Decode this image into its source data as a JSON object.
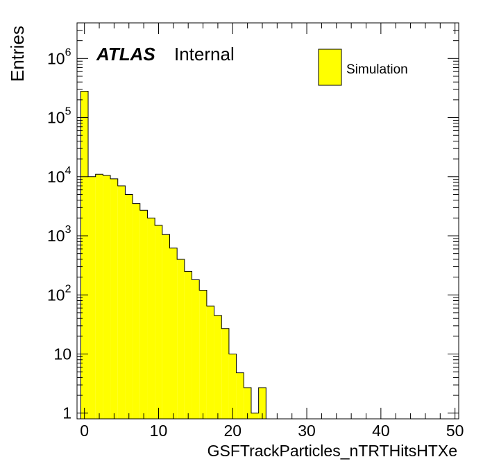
{
  "chart_data": {
    "type": "bar",
    "subtype": "histogram",
    "xlabel": "GSFTrackParticles_nTRTHitsHTXe",
    "ylabel": "Entries",
    "atlas_label": "ATLAS",
    "atlas_status": "Internal",
    "legend": {
      "position": "top-right",
      "entries": [
        "Simulation"
      ]
    },
    "fill_color": "#ffff00",
    "line_color": "#000000",
    "y_scale": "log",
    "xlim": [
      -1,
      50.5
    ],
    "ylim": [
      0.8,
      4000000
    ],
    "bin_width": 1,
    "x_ticks": [
      {
        "value": 0,
        "label": "0"
      },
      {
        "value": 10,
        "label": "10"
      },
      {
        "value": 20,
        "label": "20"
      },
      {
        "value": 30,
        "label": "30"
      },
      {
        "value": 40,
        "label": "40"
      },
      {
        "value": 50,
        "label": "50"
      }
    ],
    "y_ticks": [
      {
        "value": 1,
        "base": "1",
        "exp": ""
      },
      {
        "value": 10,
        "base": "10",
        "exp": ""
      },
      {
        "value": 100,
        "base": "10",
        "exp": "2"
      },
      {
        "value": 1000,
        "base": "10",
        "exp": "3"
      },
      {
        "value": 10000,
        "base": "10",
        "exp": "4"
      },
      {
        "value": 100000,
        "base": "10",
        "exp": "5"
      },
      {
        "value": 1000000,
        "base": "10",
        "exp": "6"
      }
    ],
    "bin_low_edges": [
      -0.5,
      0.5,
      1.5,
      2.5,
      3.5,
      4.5,
      5.5,
      6.5,
      7.5,
      8.5,
      9.5,
      10.5,
      11.5,
      12.5,
      13.5,
      14.5,
      15.5,
      16.5,
      17.5,
      18.5,
      19.5,
      20.5,
      21.5,
      22.5,
      23.5,
      24.5
    ],
    "values": [
      280000,
      10000,
      11000,
      10500,
      9200,
      7000,
      5000,
      3500,
      2700,
      2000,
      1500,
      1050,
      620,
      400,
      250,
      180,
      120,
      65,
      45,
      27,
      10,
      4.8,
      2.7,
      1,
      2.7,
      0
    ]
  }
}
